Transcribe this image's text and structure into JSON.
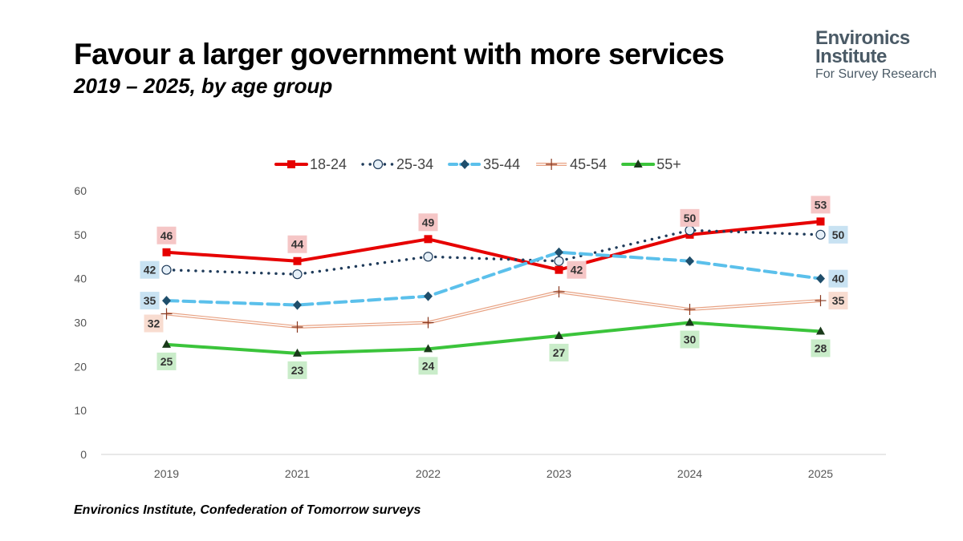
{
  "title": "Favour a larger government with more services",
  "subtitle": "2019 – 2025, by age group",
  "logo": {
    "line1": "Environics",
    "line2": "Institute",
    "line3": "For Survey Research"
  },
  "source": "Environics Institute, Confederation of Tomorrow surveys",
  "chart_data": {
    "type": "line",
    "title": "Favour a larger government with more services",
    "subtitle": "2019 – 2025, by age group",
    "xlabel": "",
    "ylabel": "",
    "categories": [
      "2019",
      "2021",
      "2022",
      "2023",
      "2024",
      "2025"
    ],
    "ylim": [
      0,
      60
    ],
    "yticks": [
      0,
      10,
      20,
      30,
      40,
      50,
      60
    ],
    "grid": false,
    "legend_position": "top",
    "series": [
      {
        "name": "18-24",
        "color": "#e60000",
        "style": "solid",
        "marker": "square",
        "label_bg": "#f5c6c6",
        "values": [
          46,
          44,
          49,
          42,
          50,
          53
        ],
        "labels": [
          46,
          44,
          49,
          42,
          50,
          53
        ],
        "label_pos": [
          "above",
          "above",
          "above",
          "right",
          "above",
          "above"
        ]
      },
      {
        "name": "25-34",
        "color": "#1f3b5a",
        "style": "dotted",
        "marker": "circle",
        "label_bg": "#c8e2f2",
        "values": [
          42,
          41,
          45,
          44,
          51,
          50
        ],
        "labels": [
          42,
          null,
          null,
          null,
          null,
          50
        ],
        "label_pos": [
          "left",
          null,
          null,
          null,
          null,
          "right"
        ]
      },
      {
        "name": "35-44",
        "color": "#5bc0eb",
        "style": "dashed",
        "marker": "diamond",
        "label_bg": "#c8e2f2",
        "values": [
          35,
          34,
          36,
          46,
          44,
          40
        ],
        "labels": [
          35,
          null,
          null,
          null,
          null,
          40
        ],
        "label_pos": [
          "left",
          null,
          null,
          null,
          null,
          "right"
        ]
      },
      {
        "name": "45-54",
        "color": "#e8a283",
        "style": "double",
        "marker": "plus",
        "label_bg": "#f8dcd0",
        "values": [
          32,
          29,
          30,
          37,
          33,
          35
        ],
        "labels": [
          32,
          null,
          null,
          null,
          null,
          35
        ],
        "label_pos": [
          "below-left",
          null,
          null,
          null,
          null,
          "right"
        ]
      },
      {
        "name": "55+",
        "color": "#3bc43b",
        "style": "solid",
        "marker": "triangle",
        "label_bg": "#c9ecc9",
        "values": [
          25,
          23,
          24,
          27,
          30,
          28
        ],
        "labels": [
          25,
          23,
          24,
          27,
          30,
          28
        ],
        "label_pos": [
          "below",
          "below",
          "below",
          "below",
          "below",
          "below"
        ]
      }
    ]
  }
}
